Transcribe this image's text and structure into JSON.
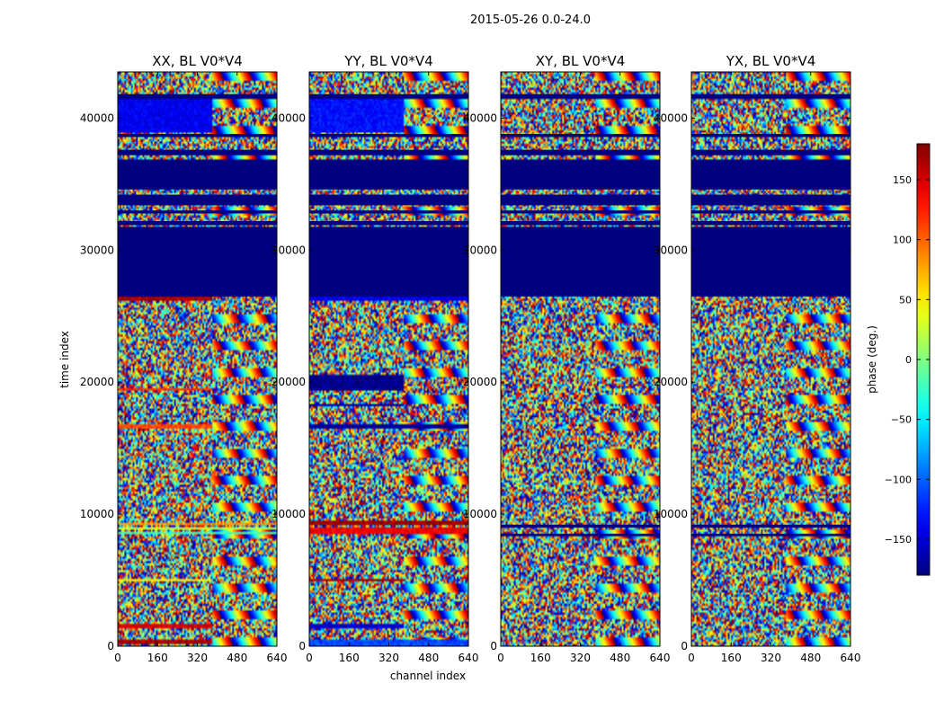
{
  "chart_data": {
    "type": "heatmap",
    "suptitle": "2015-05-26 0.0-24.0",
    "xlabel": "channel index",
    "ylabel": "time index",
    "xlim": [
      0,
      640
    ],
    "ylim": [
      0,
      43500
    ],
    "xticks": [
      0,
      160,
      320,
      480,
      640
    ],
    "xtick_labels": [
      "0",
      "160",
      "320",
      "480",
      "640"
    ],
    "yticks": [
      0,
      10000,
      20000,
      30000,
      40000
    ],
    "ytick_labels": [
      "0",
      "10000",
      "20000",
      "30000",
      "40000"
    ],
    "colormap": "jet",
    "colorbar": {
      "label": "phase (deg.)",
      "range": [
        -180,
        180
      ],
      "ticks": [
        -150,
        -100,
        -50,
        0,
        50,
        100,
        150
      ],
      "tick_labels": [
        "−150",
        "−100",
        "−50",
        "0",
        "50",
        "100",
        "150"
      ]
    },
    "panels": [
      {
        "title": "XX, BL V0*V4",
        "flagged_time_ranges": [
          [
            26500,
            31700
          ],
          [
            31900,
            32200
          ],
          [
            32800,
            33000
          ],
          [
            33400,
            34200
          ],
          [
            34600,
            36800
          ],
          [
            37200,
            37600
          ],
          [
            38600,
            38800
          ],
          [
            41500,
            41800
          ]
        ],
        "coherent_bands": [
          {
            "t0": 200,
            "t1": 500,
            "c0": 0,
            "c1": 380,
            "phase": 165
          },
          {
            "t0": 1400,
            "t1": 1700,
            "c0": 0,
            "c1": 380,
            "phase": 150
          },
          {
            "t0": 4850,
            "t1": 5150,
            "c0": 0,
            "c1": 380,
            "phase": 45
          },
          {
            "t0": 8500,
            "t1": 8750,
            "c0": 0,
            "c1": 640,
            "phase": -20
          },
          {
            "t0": 8800,
            "t1": 9050,
            "c0": 0,
            "c1": 640,
            "phase": 25
          },
          {
            "t0": 9100,
            "t1": 9350,
            "c0": 0,
            "c1": 640,
            "phase": 80
          },
          {
            "t0": 16400,
            "t1": 16900,
            "c0": 0,
            "c1": 380,
            "phase": 110
          },
          {
            "t0": 19300,
            "t1": 19500,
            "c0": 0,
            "c1": 380,
            "phase": 120
          },
          {
            "t0": 26200,
            "t1": 26500,
            "c0": 0,
            "c1": 380,
            "phase": 165
          },
          {
            "t0": 38900,
            "t1": 41400,
            "c0": 0,
            "c1": 380,
            "phase": -140
          }
        ]
      },
      {
        "title": "YY, BL V0*V4",
        "flagged_time_ranges": [
          [
            26500,
            31700
          ],
          [
            31900,
            32200
          ],
          [
            32800,
            33000
          ],
          [
            33400,
            34200
          ],
          [
            34600,
            36800
          ],
          [
            37200,
            37600
          ],
          [
            38600,
            38800
          ],
          [
            41500,
            41800
          ]
        ],
        "coherent_bands": [
          {
            "t0": 0,
            "t1": 500,
            "c0": 0,
            "c1": 640,
            "phase": -110
          },
          {
            "t0": 1400,
            "t1": 1700,
            "c0": 0,
            "c1": 380,
            "phase": -150
          },
          {
            "t0": 4850,
            "t1": 5150,
            "c0": 0,
            "c1": 380,
            "phase": 165
          },
          {
            "t0": 8500,
            "t1": 9000,
            "c0": 0,
            "c1": 640,
            "phase": 140
          },
          {
            "t0": 9100,
            "t1": 9500,
            "c0": 0,
            "c1": 640,
            "phase": 170
          },
          {
            "t0": 16400,
            "t1": 16900,
            "c0": 0,
            "c1": 640,
            "phase": -170
          },
          {
            "t0": 18100,
            "t1": 18400,
            "c0": 0,
            "c1": 380,
            "phase": -165
          },
          {
            "t0": 19400,
            "t1": 20600,
            "c0": 0,
            "c1": 380,
            "phase": -175
          },
          {
            "t0": 26200,
            "t1": 26500,
            "c0": 0,
            "c1": 640,
            "phase": -140
          },
          {
            "t0": 38900,
            "t1": 41400,
            "c0": 0,
            "c1": 380,
            "phase": -130
          }
        ]
      },
      {
        "title": "XY, BL V0*V4",
        "flagged_time_ranges": [
          [
            8400,
            8500
          ],
          [
            9000,
            9200
          ],
          [
            26500,
            31700
          ],
          [
            31900,
            32200
          ],
          [
            32800,
            33000
          ],
          [
            33400,
            34200
          ],
          [
            34600,
            36800
          ],
          [
            37200,
            37600
          ],
          [
            38600,
            38800
          ],
          [
            41500,
            41800
          ]
        ],
        "coherent_bands": []
      },
      {
        "title": "YX, BL V0*V4",
        "flagged_time_ranges": [
          [
            8400,
            8500
          ],
          [
            9000,
            9200
          ],
          [
            26500,
            31700
          ],
          [
            31900,
            32200
          ],
          [
            32800,
            33000
          ],
          [
            33400,
            34200
          ],
          [
            34600,
            36800
          ],
          [
            37200,
            37600
          ],
          [
            38600,
            38800
          ],
          [
            41500,
            41800
          ]
        ],
        "coherent_bands": []
      }
    ]
  }
}
